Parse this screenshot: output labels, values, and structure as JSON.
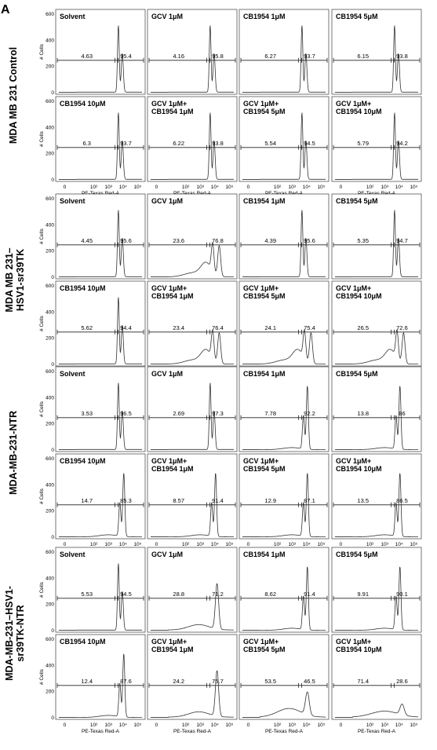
{
  "figure_letter": "A",
  "chart_data": {
    "type": "histogram-grid",
    "xlabel": "PE-Texas Red-A",
    "ylabel": "# Cells",
    "x_ticks": [
      "0",
      "10²",
      "10³",
      "10⁴",
      "10⁵"
    ],
    "y_ticks": [
      "0",
      "200",
      "400",
      "600"
    ],
    "ylim": [
      0,
      600
    ],
    "groups": [
      {
        "name": "MDA MB 231 Control",
        "name_lines": [
          "MDA MB 231 Control"
        ],
        "panels": [
          {
            "label": [
              "Solvent"
            ],
            "left": "4.63",
            "right": "95.4",
            "profile": "normal"
          },
          {
            "label": [
              "GCV 1μM"
            ],
            "left": "4.16",
            "right": "95.8",
            "profile": "normal"
          },
          {
            "label": [
              "CB1954 1μM"
            ],
            "left": "6.27",
            "right": "93.7",
            "profile": "normal"
          },
          {
            "label": [
              "CB1954 5μM"
            ],
            "left": "6.15",
            "right": "93.8",
            "profile": "normal"
          },
          {
            "label": [
              "CB1954 10μM"
            ],
            "left": "6.3",
            "right": "93.7",
            "profile": "normal"
          },
          {
            "label": [
              "GCV 1μM+",
              "CB1954 1μM"
            ],
            "left": "6.22",
            "right": "93.8",
            "profile": "normal"
          },
          {
            "label": [
              "GCV 1μM+",
              "CB1954 5μM"
            ],
            "left": "5.54",
            "right": "94.5",
            "profile": "normal"
          },
          {
            "label": [
              "GCV 1μM+",
              "CB1954 10μM"
            ],
            "left": "5.79",
            "right": "94.2",
            "profile": "normal"
          }
        ]
      },
      {
        "name": "MDA MB 231–HSV1-sr39TK",
        "name_lines": [
          "MDA MB 231–",
          "HSV1-sr39TK"
        ],
        "panels": [
          {
            "label": [
              "Solvent"
            ],
            "left": "4.45",
            "right": "95.6",
            "profile": "normal"
          },
          {
            "label": [
              "GCV 1μM"
            ],
            "left": "23.6",
            "right": "76.8",
            "profile": "broad"
          },
          {
            "label": [
              "CB1954 1μM"
            ],
            "left": "4.39",
            "right": "95.6",
            "profile": "normal"
          },
          {
            "label": [
              "CB1954 5μM"
            ],
            "left": "5.35",
            "right": "94.7",
            "profile": "normal"
          },
          {
            "label": [
              "CB1954 10μM"
            ],
            "left": "5.62",
            "right": "94.4",
            "profile": "normal"
          },
          {
            "label": [
              "GCV 1μM+",
              "CB1954 1μM"
            ],
            "left": "23.4",
            "right": "76.4",
            "profile": "broad"
          },
          {
            "label": [
              "GCV 1μM+",
              "CB1954 5μM"
            ],
            "left": "24.1",
            "right": "75.4",
            "profile": "broad"
          },
          {
            "label": [
              "GCV 1μM+",
              "CB1954 10μM"
            ],
            "left": "26.5",
            "right": "72.6",
            "profile": "broad"
          }
        ]
      },
      {
        "name": "MDA-MB-231-NTR",
        "name_lines": [
          "MDA-MB-231-NTR"
        ],
        "panels": [
          {
            "label": [
              "Solvent"
            ],
            "left": "3.53",
            "right": "96.5",
            "profile": "normal"
          },
          {
            "label": [
              "GCV 1μM"
            ],
            "left": "2.69",
            "right": "97.3",
            "profile": "normal"
          },
          {
            "label": [
              "CB1954 1μM"
            ],
            "left": "7.78",
            "right": "92.2",
            "profile": "shift"
          },
          {
            "label": [
              "CB1954 5μM"
            ],
            "left": "13.8",
            "right": "86",
            "profile": "shift"
          },
          {
            "label": [
              "CB1954 10μM"
            ],
            "left": "14.7",
            "right": "85.3",
            "profile": "shift"
          },
          {
            "label": [
              "GCV 1μM+",
              "CB1954 1μM"
            ],
            "left": "8.57",
            "right": "91.4",
            "profile": "shift"
          },
          {
            "label": [
              "GCV 1μM+",
              "CB1954 5μM"
            ],
            "left": "12.9",
            "right": "87.1",
            "profile": "shift"
          },
          {
            "label": [
              "GCV 1μM+",
              "CB1954 10μM"
            ],
            "left": "13.5",
            "right": "86.5",
            "profile": "shift"
          }
        ]
      },
      {
        "name": "MDA-MB-231–HSV1-sr39TK-NTR",
        "name_lines": [
          "MDA-MB-231–HSV1-",
          "sr39TK-NTR"
        ],
        "panels": [
          {
            "label": [
              "Solvent"
            ],
            "left": "5.53",
            "right": "94.5",
            "profile": "normal"
          },
          {
            "label": [
              "GCV 1μM"
            ],
            "left": "28.8",
            "right": "71.2",
            "profile": "single"
          },
          {
            "label": [
              "CB1954 1μM"
            ],
            "left": "8.62",
            "right": "91.4",
            "profile": "shift"
          },
          {
            "label": [
              "CB1954 5μM"
            ],
            "left": "9.91",
            "right": "90.1",
            "profile": "shift"
          },
          {
            "label": [
              "CB1954 10μM"
            ],
            "left": "12.4",
            "right": "87.6",
            "profile": "shift"
          },
          {
            "label": [
              "GCV 1μM+",
              "CB1954 1μM"
            ],
            "left": "24.2",
            "right": "75.7",
            "profile": "single"
          },
          {
            "label": [
              "GCV 1μM+",
              "CB1954 5μM"
            ],
            "left": "53.5",
            "right": "46.5",
            "profile": "flat"
          },
          {
            "label": [
              "GCV 1μM+",
              "CB1954 10μM"
            ],
            "left": "71.4",
            "right": "28.6",
            "profile": "flatter"
          }
        ]
      }
    ]
  }
}
